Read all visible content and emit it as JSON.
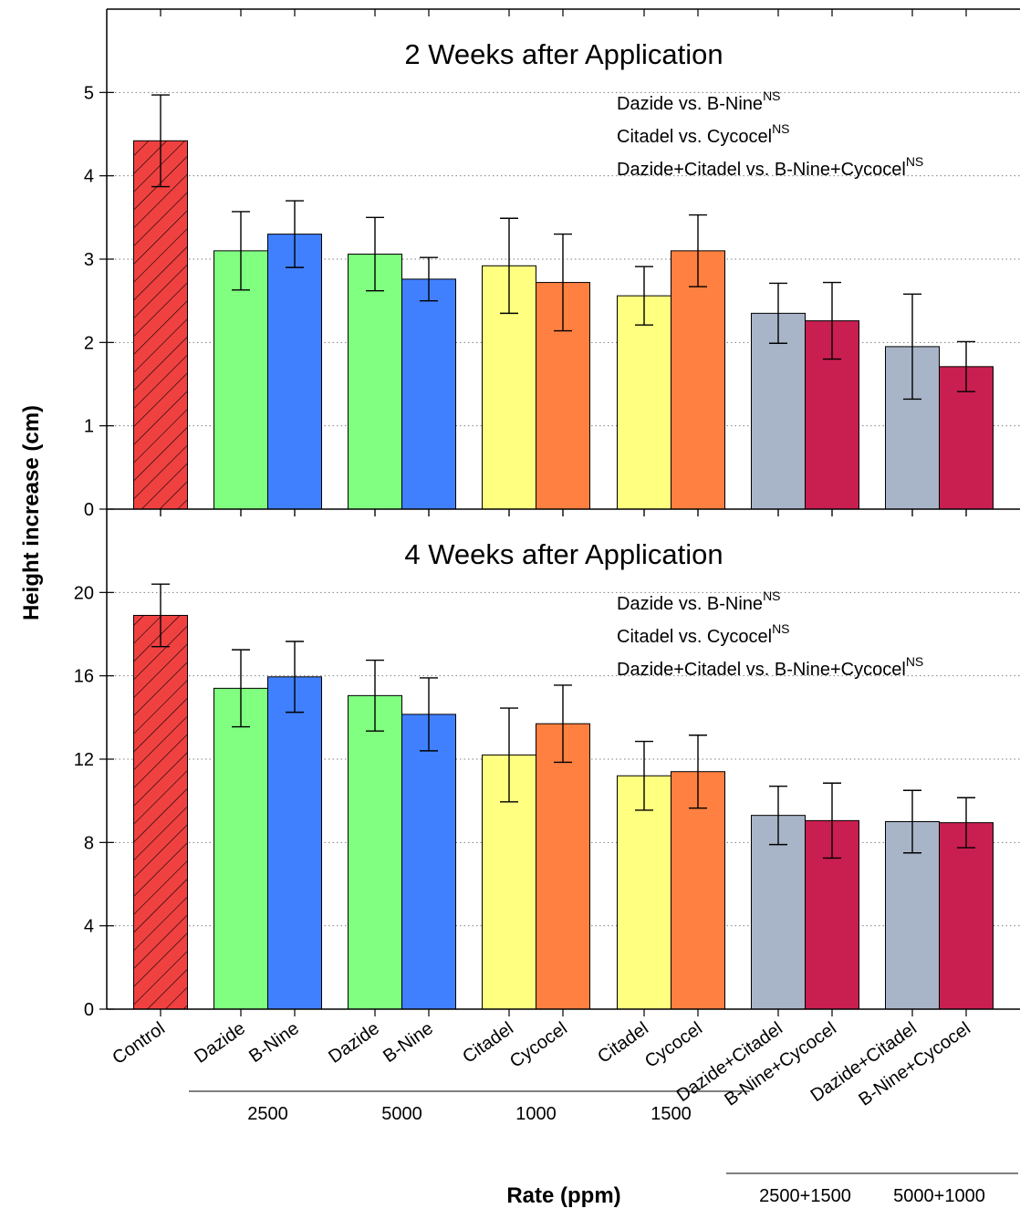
{
  "chart_data": {
    "type": "bar",
    "xlabel": "Rate (ppm)",
    "ylabel": "Height increase (cm)",
    "grid": "horizontal dotted",
    "categories": [
      "Control",
      "Dazide",
      "B-Nine",
      "Dazide",
      "B-Nine",
      "Citadel",
      "Cycocel",
      "Citadel",
      "Cycocel",
      "Dazide+Citadel",
      "B-Nine+Cycocel",
      "Dazide+Citadel",
      "B-Nine+Cycocel"
    ],
    "rate_groups": [
      {
        "label": "2500",
        "from": 1,
        "to": 2
      },
      {
        "label": "5000",
        "from": 3,
        "to": 4
      },
      {
        "label": "1000",
        "from": 5,
        "to": 6
      },
      {
        "label": "1500",
        "from": 7,
        "to": 8
      },
      {
        "label": "2500+1500",
        "from": 9,
        "to": 10
      },
      {
        "label": "5000+1000",
        "from": 11,
        "to": 12
      }
    ],
    "colors": [
      "#f04141",
      "#80ff80",
      "#4080ff",
      "#80ff80",
      "#4080ff",
      "#ffff80",
      "#ff8040",
      "#ffff80",
      "#ff8040",
      "#a8b4c8",
      "#c81e50",
      "#a8b4c8",
      "#c81e50"
    ],
    "panels": [
      {
        "title": "2 Weeks after Application",
        "ylim": [
          0,
          6
        ],
        "yticks": [
          0,
          1,
          2,
          3,
          4,
          5
        ],
        "values": [
          4.42,
          3.1,
          3.3,
          3.06,
          2.76,
          2.92,
          2.72,
          2.56,
          3.1,
          2.35,
          2.26,
          1.95,
          1.71
        ],
        "errors": [
          0.55,
          0.47,
          0.4,
          0.44,
          0.26,
          0.57,
          0.58,
          0.35,
          0.43,
          0.36,
          0.46,
          0.63,
          0.3
        ],
        "annotations": [
          {
            "text": "Dazide vs. B-Nine",
            "sup": "NS"
          },
          {
            "text": "Citadel vs. Cycocel",
            "sup": "NS"
          },
          {
            "text": "Dazide+Citadel vs. B-Nine+Cycocel",
            "sup": "NS"
          }
        ]
      },
      {
        "title": "4 Weeks after Application",
        "ylim": [
          0,
          24
        ],
        "yticks": [
          0,
          4,
          8,
          12,
          16,
          20
        ],
        "values": [
          18.9,
          15.4,
          15.95,
          15.05,
          14.15,
          12.2,
          13.7,
          11.2,
          11.4,
          9.3,
          9.05,
          9.0,
          8.95
        ],
        "errors": [
          1.5,
          1.85,
          1.7,
          1.7,
          1.75,
          2.25,
          1.85,
          1.65,
          1.75,
          1.4,
          1.8,
          1.5,
          1.2
        ],
        "annotations": [
          {
            "text": "Dazide vs. B-Nine",
            "sup": "NS"
          },
          {
            "text": "Citadel vs. Cycocel",
            "sup": "NS"
          },
          {
            "text": "Dazide+Citadel vs. B-Nine+Cycocel",
            "sup": "NS"
          }
        ]
      }
    ]
  }
}
